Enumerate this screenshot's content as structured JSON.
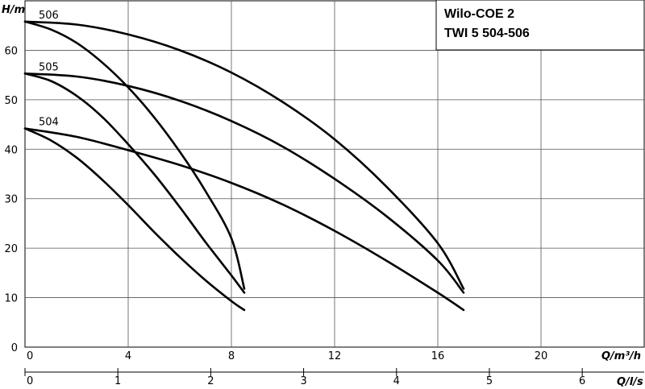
{
  "chart_data": {
    "type": "line",
    "title_lines": [
      "Wilo-COE 2",
      "TWI 5 504-506"
    ],
    "ylabel": "H/m",
    "xlabel": "Q/m³/h",
    "x2label": "Q/l/s",
    "xlim": [
      0,
      24
    ],
    "ylim": [
      0,
      70
    ],
    "x2lim": [
      0,
      6.667
    ],
    "yticks": [
      0,
      10,
      20,
      30,
      40,
      50,
      60
    ],
    "xticks": [
      0,
      4,
      8,
      12,
      16,
      20
    ],
    "x2ticks": [
      0,
      1,
      2,
      3,
      4,
      5,
      6
    ],
    "grid": true,
    "series": [
      {
        "name": "506",
        "points": [
          [
            0,
            65.8
          ],
          [
            2,
            65.2
          ],
          [
            4,
            63.2
          ],
          [
            6,
            60.0
          ],
          [
            8,
            55.5
          ],
          [
            10,
            49.5
          ],
          [
            12,
            42.0
          ],
          [
            14,
            32.5
          ],
          [
            16,
            21.0
          ],
          [
            17.0,
            11.8
          ]
        ],
        "label_at": [
          0,
          65.8
        ]
      },
      {
        "name": "",
        "points": [
          [
            0,
            65.8
          ],
          [
            1,
            64.2
          ],
          [
            2,
            61.5
          ],
          [
            3,
            57.5
          ],
          [
            4,
            52.5
          ],
          [
            5,
            46.5
          ],
          [
            6,
            39.5
          ],
          [
            7,
            31.5
          ],
          [
            8,
            22.0
          ],
          [
            8.5,
            11.8
          ]
        ],
        "label_at": null
      },
      {
        "name": "505",
        "points": [
          [
            0,
            55.3
          ],
          [
            2,
            54.7
          ],
          [
            4,
            52.8
          ],
          [
            6,
            49.8
          ],
          [
            8,
            45.7
          ],
          [
            10,
            40.5
          ],
          [
            12,
            34.0
          ],
          [
            14,
            26.5
          ],
          [
            16,
            17.5
          ],
          [
            17.0,
            11.0
          ]
        ],
        "label_at": [
          0,
          55.3
        ]
      },
      {
        "name": "",
        "points": [
          [
            0,
            55.3
          ],
          [
            1,
            53.8
          ],
          [
            2,
            50.8
          ],
          [
            3,
            46.5
          ],
          [
            4,
            41.0
          ],
          [
            5,
            35.0
          ],
          [
            6,
            28.3
          ],
          [
            7,
            21.2
          ],
          [
            8,
            14.5
          ],
          [
            8.5,
            11.0
          ]
        ],
        "label_at": null
      },
      {
        "name": "504",
        "points": [
          [
            0,
            44.2
          ],
          [
            2,
            42.5
          ],
          [
            4,
            39.8
          ],
          [
            6,
            36.8
          ],
          [
            8,
            33.2
          ],
          [
            10,
            28.8
          ],
          [
            12,
            23.5
          ],
          [
            14,
            17.5
          ],
          [
            16,
            11.0
          ],
          [
            17.0,
            7.5
          ]
        ],
        "label_at": [
          0,
          44.2
        ]
      },
      {
        "name": "",
        "points": [
          [
            0,
            44.2
          ],
          [
            1,
            41.8
          ],
          [
            2,
            38.3
          ],
          [
            3,
            33.8
          ],
          [
            4,
            28.7
          ],
          [
            5,
            23.3
          ],
          [
            6,
            18.2
          ],
          [
            7,
            13.5
          ],
          [
            8,
            9.3
          ],
          [
            8.5,
            7.5
          ]
        ],
        "label_at": null
      }
    ]
  }
}
